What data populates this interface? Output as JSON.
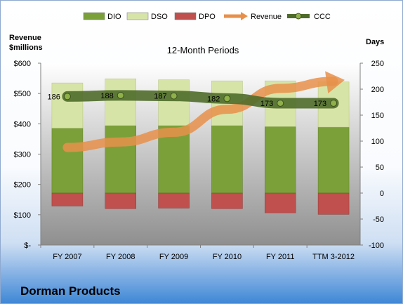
{
  "chart_data": {
    "type": "bar",
    "title": "12-Month Periods",
    "company": "Dorman Products",
    "left_axis_title": [
      "Revenue",
      "$millions"
    ],
    "right_axis_title": "Days",
    "categories": [
      "FY 2007",
      "FY 2008",
      "FY 2009",
      "FY 2010",
      "FY 2011",
      "TTM 3-2012"
    ],
    "left_ylim": [
      0,
      600
    ],
    "left_ticks": [
      "$-",
      "$100",
      "$200",
      "$300",
      "$400",
      "$500",
      "$600"
    ],
    "right_ylim": [
      -100,
      250
    ],
    "right_ticks": [
      "-100",
      "-50",
      "0",
      "50",
      "100",
      "150",
      "200",
      "250"
    ],
    "legend_position": "top",
    "grid": false,
    "series": [
      {
        "name": "DIO",
        "kind": "bar-positive-base",
        "axis": "right",
        "color": "#7ba03a",
        "values": [
          125,
          130,
          130,
          130,
          128,
          127
        ]
      },
      {
        "name": "DSO",
        "kind": "bar-positive-stack",
        "axis": "right",
        "color": "#d7e4a8",
        "values": [
          87,
          90,
          88,
          86,
          88,
          87
        ]
      },
      {
        "name": "DPO",
        "kind": "bar-negative",
        "axis": "right",
        "color": "#c0504d",
        "values": [
          -25,
          -30,
          -29,
          -30,
          -38,
          -41
        ]
      },
      {
        "name": "Revenue",
        "kind": "arrow-line",
        "axis": "left",
        "color": "#e8904a",
        "values": [
          322,
          340,
          372,
          448,
          517,
          540
        ]
      },
      {
        "name": "CCC",
        "kind": "line-markers",
        "axis": "right",
        "color": "#4f6b2a",
        "values": [
          186,
          188,
          187,
          182,
          173,
          173
        ],
        "data_labels": [
          "186",
          "188",
          "187",
          "182",
          "173",
          "173"
        ]
      }
    ]
  }
}
